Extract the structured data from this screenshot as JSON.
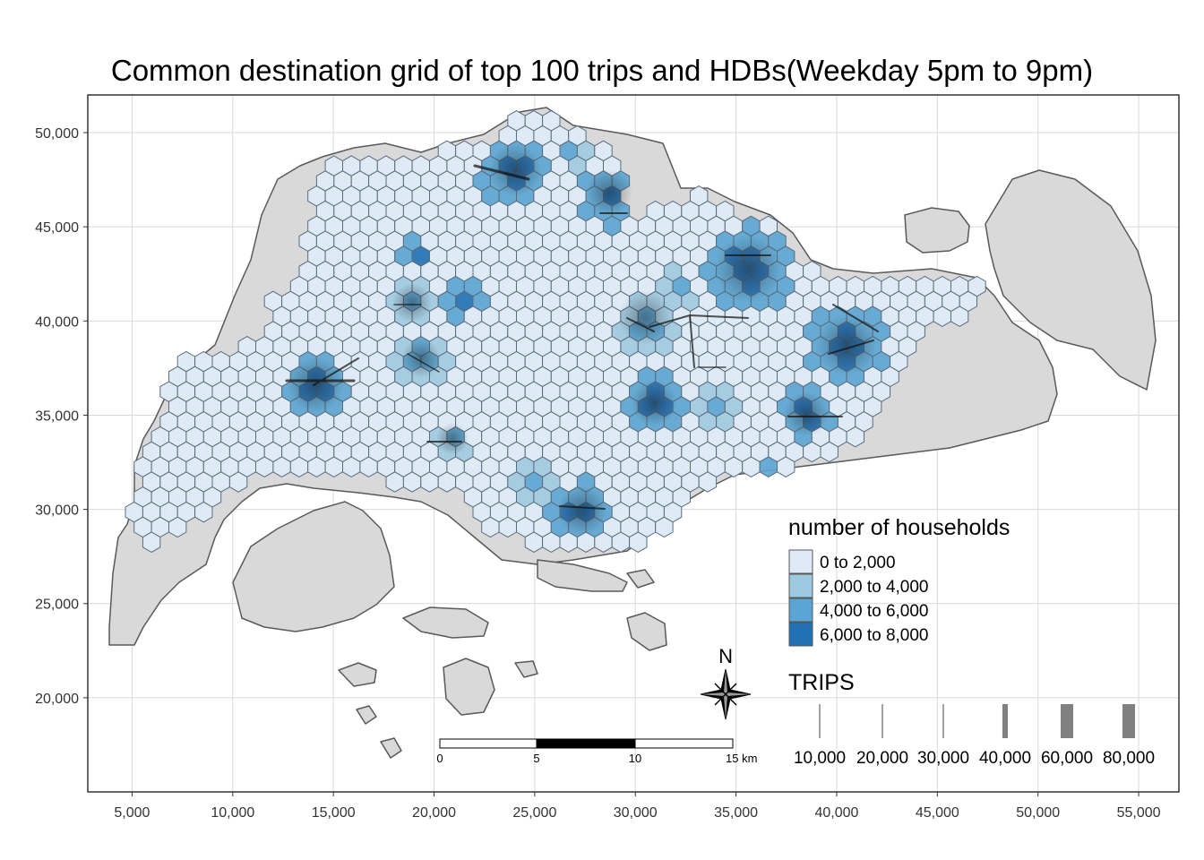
{
  "title": "Common destination grid of top 100 trips and HDBs(Weekday 5pm to 9pm)",
  "axes": {
    "x_ticks": [
      "5,000",
      "10,000",
      "15,000",
      "20,000",
      "25,000",
      "30,000",
      "35,000",
      "40,000",
      "45,000",
      "50,000",
      "55,000"
    ],
    "x_values": [
      5000,
      10000,
      15000,
      20000,
      25000,
      30000,
      35000,
      40000,
      45000,
      50000,
      55000
    ],
    "y_ticks": [
      "50,000",
      "45,000",
      "40,000",
      "35,000",
      "30,000",
      "25,000",
      "20,000"
    ],
    "y_values": [
      50000,
      45000,
      40000,
      35000,
      30000,
      25000,
      20000
    ],
    "xlim": [
      2800,
      57000
    ],
    "ylim": [
      15000,
      52000
    ]
  },
  "legend_households": {
    "title": "number of households",
    "items": [
      {
        "label": "0 to 2,000",
        "color": "#deebf7"
      },
      {
        "label": "2,000 to 4,000",
        "color": "#9ecae1"
      },
      {
        "label": "4,000 to 6,000",
        "color": "#5aa5d3"
      },
      {
        "label": "6,000 to 8,000",
        "color": "#2171b5"
      }
    ]
  },
  "legend_trips": {
    "title": "TRIPS",
    "items": [
      {
        "label": "10,000",
        "value": 10000
      },
      {
        "label": "20,000",
        "value": 20000
      },
      {
        "label": "30,000",
        "value": 30000
      },
      {
        "label": "40,000",
        "value": 40000
      },
      {
        "label": "60,000",
        "value": 60000
      },
      {
        "label": "80,000",
        "value": 80000
      }
    ]
  },
  "scale_bar": {
    "labels": [
      "0",
      "5",
      "10",
      "15 km"
    ]
  },
  "north_arrow": {
    "label": "N"
  },
  "colors": {
    "land": "#d9d9d9",
    "land_stroke": "#595959",
    "grid": "#d9d9d9",
    "flow_line": "#1a1a1a"
  }
}
